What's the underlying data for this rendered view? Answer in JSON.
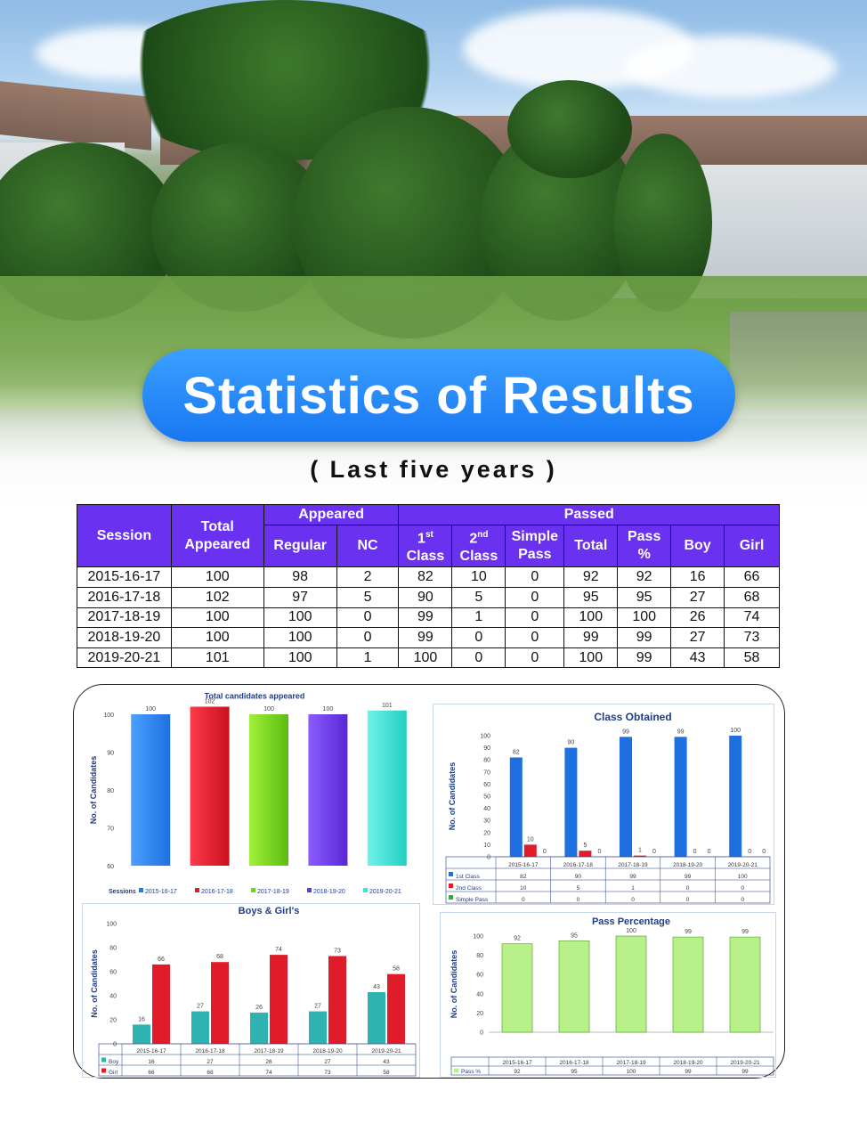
{
  "header": {
    "title": "Statistics of Results",
    "subtitle": "( Last five years )"
  },
  "table": {
    "headers": {
      "session": "Session",
      "total_appeared": "Total Appeared",
      "appeared": "Appeared",
      "regular": "Regular",
      "nc": "NC",
      "passed": "Passed",
      "first_class_main": "1",
      "first_class_sup": "st",
      "first_class_sub": "Class",
      "second_class_main": "2",
      "second_class_sup": "nd",
      "second_class_sub": "Class",
      "simple_pass": "Simple Pass",
      "total": "Total",
      "pass_pct": "Pass %",
      "boy": "Boy",
      "girl": "Girl"
    },
    "rows": [
      [
        "2015-16-17",
        "100",
        "98",
        "2",
        "82",
        "10",
        "0",
        "92",
        "92",
        "16",
        "66"
      ],
      [
        "2016-17-18",
        "102",
        "97",
        "5",
        "90",
        "5",
        "0",
        "95",
        "95",
        "27",
        "68"
      ],
      [
        "2017-18-19",
        "100",
        "100",
        "0",
        "99",
        "1",
        "0",
        "100",
        "100",
        "26",
        "74"
      ],
      [
        "2018-19-20",
        "100",
        "100",
        "0",
        "99",
        "0",
        "0",
        "99",
        "99",
        "27",
        "73"
      ],
      [
        "2019-20-21",
        "101",
        "100",
        "1",
        "100",
        "0",
        "0",
        "100",
        "99",
        "43",
        "58"
      ]
    ]
  },
  "colors": {
    "title_blue": "#1877f2",
    "table_header": "#6a32f0",
    "bar_blue": "#1e6fe0",
    "bar_red": "#e01c2a",
    "bar_teal": "#2fb3b0",
    "bar_green_light": "#b8f08a",
    "session_colors": [
      "#1e7fe6",
      "#e01c2a",
      "#6fd21e",
      "#6a34e6",
      "#3fe3d6"
    ]
  },
  "chart_data": [
    {
      "id": "total",
      "type": "bar",
      "title": "Total candidates appeared",
      "ylabel": "No. of Candidates",
      "ylim": [
        60,
        100
      ],
      "yticks": [
        "60",
        "70",
        "80",
        "90",
        "100"
      ],
      "categories": [
        "2015-16-17",
        "2016-17-18",
        "2017-18-19",
        "2018-19-20",
        "2019-20-21"
      ],
      "values": [
        100,
        102,
        100,
        100,
        101
      ],
      "value_labels": [
        "100",
        "102",
        "100",
        "100",
        "101"
      ],
      "legend_title": "Sessions",
      "legend": [
        "2015-16-17",
        "2016-17-18",
        "2017-18-19",
        "2018-19-20",
        "2019-20-21"
      ]
    },
    {
      "id": "class",
      "type": "bar",
      "title": "Class Obtained",
      "ylabel": "No. of Candidates",
      "ylim": [
        0,
        100
      ],
      "yticks": [
        "0",
        "10",
        "20",
        "30",
        "40",
        "50",
        "60",
        "70",
        "80",
        "90",
        "100"
      ],
      "categories": [
        "2015-16-17",
        "2016-17-18",
        "2017-18-19",
        "2018-19-20",
        "2019-20-21"
      ],
      "series": [
        {
          "name": "1st Class",
          "values": [
            82,
            90,
            99,
            99,
            100
          ],
          "labels": [
            "82",
            "90",
            "99",
            "99",
            "100"
          ]
        },
        {
          "name": "2nd Class",
          "values": [
            10,
            5,
            1,
            0,
            0
          ],
          "labels": [
            "10",
            "5",
            "1",
            "0",
            "0"
          ]
        },
        {
          "name": "Simple Pass",
          "values": [
            0,
            0,
            0,
            0,
            0
          ],
          "labels": [
            "0",
            "0",
            "0",
            "0",
            "0"
          ]
        }
      ]
    },
    {
      "id": "gender",
      "type": "bar",
      "title": "Boys & Girl's",
      "ylabel": "No. of Candidates",
      "ylim": [
        0,
        100
      ],
      "yticks": [
        "0",
        "20",
        "40",
        "60",
        "80",
        "100"
      ],
      "categories": [
        "2015-16-17",
        "2016-17-18",
        "2017-18-19",
        "2018-19-20",
        "2019-20-21"
      ],
      "series": [
        {
          "name": "Boy",
          "values": [
            16,
            27,
            26,
            27,
            43
          ],
          "labels": [
            "16",
            "27",
            "26",
            "27",
            "43"
          ]
        },
        {
          "name": "Girl",
          "values": [
            66,
            68,
            74,
            73,
            58
          ],
          "labels": [
            "66",
            "68",
            "74",
            "73",
            "58"
          ]
        }
      ]
    },
    {
      "id": "pass",
      "type": "bar",
      "title": "Pass Percentage",
      "ylabel": "No. of Candidates",
      "ylim": [
        0,
        100
      ],
      "yticks": [
        "0",
        "20",
        "40",
        "60",
        "80",
        "100"
      ],
      "categories": [
        "2015-16-17",
        "2016-17-18",
        "2017-18-19",
        "2018-19-20",
        "2019-20-21"
      ],
      "series": [
        {
          "name": "Pass %",
          "values": [
            92,
            95,
            100,
            99,
            99
          ],
          "labels": [
            "92",
            "95",
            "100",
            "99",
            "99"
          ]
        }
      ]
    }
  ]
}
